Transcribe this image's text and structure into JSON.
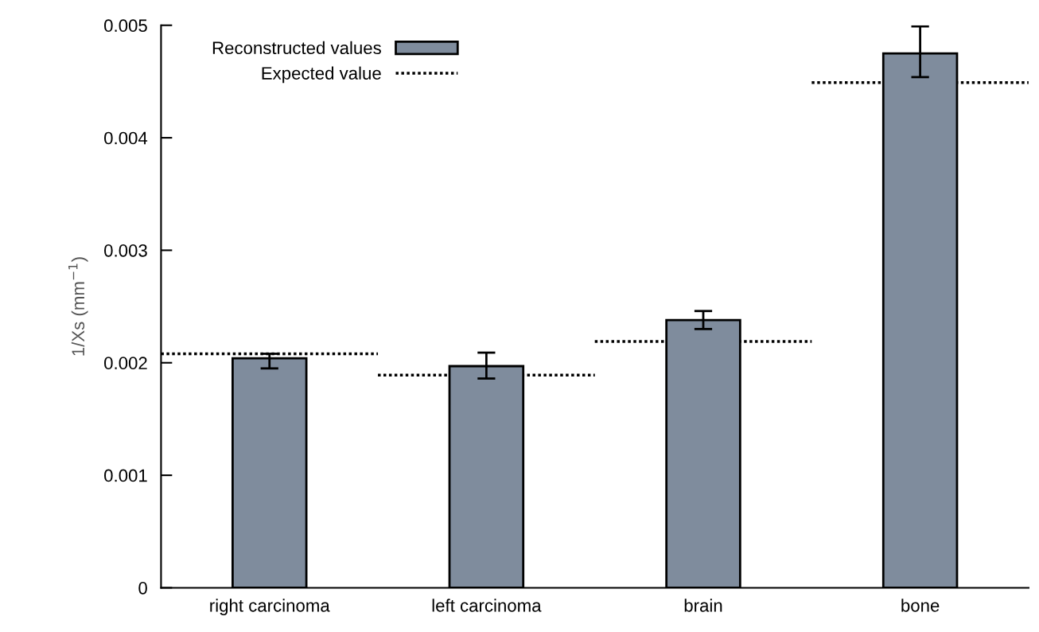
{
  "chart_data": {
    "type": "bar",
    "ylabel": "1/Xs (mm$^{−1}$)",
    "categories": [
      "right carcinoma",
      "left carcinoma",
      "brain",
      "bone"
    ],
    "series": [
      {
        "name": "Reconstructed values",
        "type": "bar",
        "color": "#7f8c9d",
        "values": [
          0.00204,
          0.00197,
          0.00238,
          0.00475
        ],
        "errors": [
          [
            0.00195,
            0.00208
          ],
          [
            0.00186,
            0.00209
          ],
          [
            0.0023,
            0.00246
          ],
          [
            0.00454,
            0.00499
          ]
        ]
      }
    ],
    "ref_lines": [
      {
        "axis": "y",
        "value": 0.00208,
        "label": "Expected value",
        "color": "#000000",
        "line_style": "dotted"
      },
      {
        "axis": "y",
        "value": 0.00189,
        "color": "#000000",
        "line_style": "dotted"
      },
      {
        "axis": "y",
        "value": 0.00219,
        "color": "#000000",
        "line_style": "dotted"
      },
      {
        "axis": "y",
        "value": 0.00449,
        "color": "#000000",
        "line_style": "dotted"
      }
    ],
    "ylim": [
      0,
      0.005
    ],
    "yticks": [
      0,
      0.001,
      0.002,
      0.003,
      0.004,
      0.005
    ],
    "grid": false,
    "legend": "top left"
  }
}
